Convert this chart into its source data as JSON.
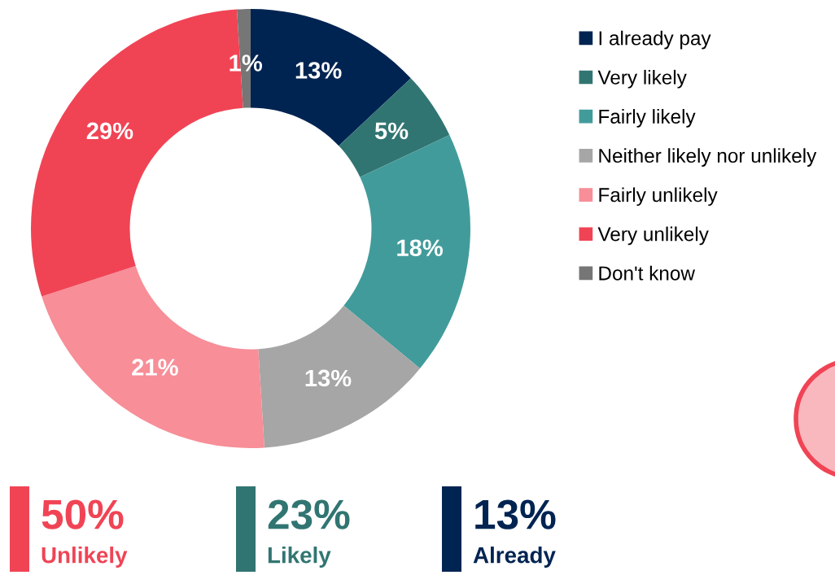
{
  "chart_data": {
    "type": "donut",
    "categories": [
      "I already pay",
      "Very likely",
      "Fairly likely",
      "Neither likely nor unlikely",
      "Fairly unlikely",
      "Very unlikely",
      "Don't know"
    ],
    "values": [
      13,
      5,
      18,
      13,
      21,
      29,
      1
    ],
    "colors": [
      "#002452",
      "#317572",
      "#429b9b",
      "#a6a6a6",
      "#f78e98",
      "#f04455",
      "#767676"
    ],
    "value_labels": [
      "13%",
      "5%",
      "18%",
      "13%",
      "21%",
      "29%",
      "1%"
    ],
    "legend": "right",
    "annotations": [
      "50%",
      "Unlikely",
      "23%",
      "Likely",
      "13%",
      "Already"
    ]
  }
}
